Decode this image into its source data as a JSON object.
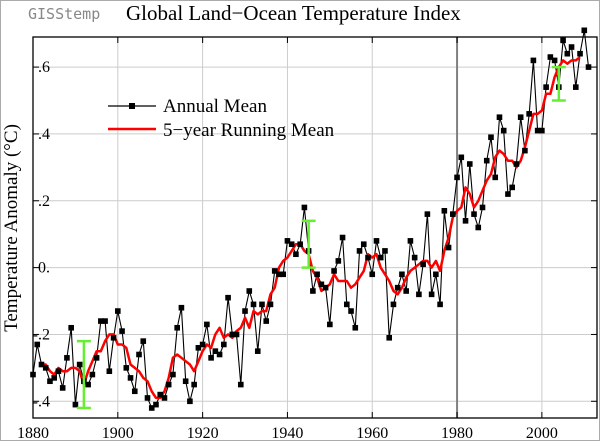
{
  "header": {
    "brand": "GISStemp",
    "title": "Global Land−Ocean Temperature Index"
  },
  "chart_data": {
    "type": "line",
    "ylabel": "Temperature Anomaly (°C)",
    "xlabel": "",
    "xlim": [
      1880,
      2013
    ],
    "ylim": [
      -0.45,
      0.69
    ],
    "x_ticks": [
      {
        "value": 1880,
        "label": "1880"
      },
      {
        "value": 1900,
        "label": "1900"
      },
      {
        "value": 1920,
        "label": "1920"
      },
      {
        "value": 1940,
        "label": "1940"
      },
      {
        "value": 1960,
        "label": "1960"
      },
      {
        "value": 1980,
        "label": "1980"
      },
      {
        "value": 2000,
        "label": "2000"
      }
    ],
    "y_ticks": [
      {
        "value": -0.4,
        "label": "-.4"
      },
      {
        "value": -0.2,
        "label": "-.2"
      },
      {
        "value": 0.0,
        "label": "0."
      },
      {
        "value": 0.2,
        "label": ".2"
      },
      {
        "value": 0.4,
        "label": ".4"
      },
      {
        "value": 0.6,
        "label": ".6"
      }
    ],
    "grid": true,
    "reference_line_x": 1980,
    "legend": {
      "position": "top-left",
      "entries": [
        "Annual Mean",
        "5−year Running Mean"
      ]
    },
    "series": [
      {
        "name": "Annual Mean",
        "color": "#000000",
        "marker": "square",
        "x": [
          1880,
          1881,
          1882,
          1883,
          1884,
          1885,
          1886,
          1887,
          1888,
          1889,
          1890,
          1891,
          1892,
          1893,
          1894,
          1895,
          1896,
          1897,
          1898,
          1899,
          1900,
          1901,
          1902,
          1903,
          1904,
          1905,
          1906,
          1907,
          1908,
          1909,
          1910,
          1911,
          1912,
          1913,
          1914,
          1915,
          1916,
          1917,
          1918,
          1919,
          1920,
          1921,
          1922,
          1923,
          1924,
          1925,
          1926,
          1927,
          1928,
          1929,
          1930,
          1931,
          1932,
          1933,
          1934,
          1935,
          1936,
          1937,
          1938,
          1939,
          1940,
          1941,
          1942,
          1943,
          1944,
          1945,
          1946,
          1947,
          1948,
          1949,
          1950,
          1951,
          1952,
          1953,
          1954,
          1955,
          1956,
          1957,
          1958,
          1959,
          1960,
          1961,
          1962,
          1963,
          1964,
          1965,
          1966,
          1967,
          1968,
          1969,
          1970,
          1971,
          1972,
          1973,
          1974,
          1975,
          1976,
          1977,
          1978,
          1979,
          1980,
          1981,
          1982,
          1983,
          1984,
          1985,
          1986,
          1987,
          1988,
          1989,
          1990,
          1991,
          1992,
          1993,
          1994,
          1995,
          1996,
          1997,
          1998,
          1999,
          2000,
          2001,
          2002,
          2003,
          2004,
          2005,
          2006,
          2007,
          2008,
          2009,
          2010,
          2011
        ],
        "values": [
          -0.32,
          -0.23,
          -0.29,
          -0.3,
          -0.34,
          -0.33,
          -0.31,
          -0.36,
          -0.27,
          -0.18,
          -0.41,
          -0.29,
          -0.34,
          -0.35,
          -0.32,
          -0.27,
          -0.16,
          -0.16,
          -0.31,
          -0.21,
          -0.13,
          -0.19,
          -0.3,
          -0.33,
          -0.37,
          -0.26,
          -0.22,
          -0.39,
          -0.42,
          -0.41,
          -0.38,
          -0.39,
          -0.35,
          -0.32,
          -0.18,
          -0.12,
          -0.34,
          -0.4,
          -0.35,
          -0.24,
          -0.23,
          -0.17,
          -0.27,
          -0.25,
          -0.26,
          -0.23,
          -0.09,
          -0.2,
          -0.2,
          -0.35,
          -0.13,
          -0.07,
          -0.11,
          -0.25,
          -0.11,
          -0.16,
          -0.11,
          -0.01,
          -0.02,
          -0.02,
          0.08,
          0.07,
          0.04,
          0.07,
          0.18,
          0.05,
          -0.07,
          -0.02,
          -0.05,
          -0.06,
          -0.17,
          -0.01,
          0.02,
          0.09,
          -0.11,
          -0.13,
          -0.18,
          0.05,
          0.07,
          0.03,
          -0.02,
          0.08,
          0.03,
          0.05,
          -0.21,
          -0.11,
          -0.06,
          -0.02,
          -0.07,
          0.08,
          0.03,
          -0.08,
          0.01,
          0.16,
          -0.08,
          -0.02,
          -0.11,
          0.17,
          0.06,
          0.16,
          0.27,
          0.33,
          0.14,
          0.31,
          0.16,
          0.12,
          0.18,
          0.32,
          0.39,
          0.27,
          0.45,
          0.41,
          0.22,
          0.24,
          0.31,
          0.45,
          0.35,
          0.46,
          0.62,
          0.41,
          0.41,
          0.54,
          0.63,
          0.62,
          0.54,
          0.68,
          0.64,
          0.66,
          0.54,
          0.64,
          0.71,
          0.6
        ]
      },
      {
        "name": "5−year Running Mean",
        "color": "#ff0000",
        "x": [
          1882,
          1883,
          1884,
          1885,
          1886,
          1887,
          1888,
          1889,
          1890,
          1891,
          1892,
          1893,
          1894,
          1895,
          1896,
          1897,
          1898,
          1899,
          1900,
          1901,
          1902,
          1903,
          1904,
          1905,
          1906,
          1907,
          1908,
          1909,
          1910,
          1911,
          1912,
          1913,
          1914,
          1915,
          1916,
          1917,
          1918,
          1919,
          1920,
          1921,
          1922,
          1923,
          1924,
          1925,
          1926,
          1927,
          1928,
          1929,
          1930,
          1931,
          1932,
          1933,
          1934,
          1935,
          1936,
          1937,
          1938,
          1939,
          1940,
          1941,
          1942,
          1943,
          1944,
          1945,
          1946,
          1947,
          1948,
          1949,
          1950,
          1951,
          1952,
          1953,
          1954,
          1955,
          1956,
          1957,
          1958,
          1959,
          1960,
          1961,
          1962,
          1963,
          1964,
          1965,
          1966,
          1967,
          1968,
          1969,
          1970,
          1971,
          1972,
          1973,
          1974,
          1975,
          1976,
          1977,
          1978,
          1979,
          1980,
          1981,
          1982,
          1983,
          1984,
          1985,
          1986,
          1987,
          1988,
          1989,
          1990,
          1991,
          1992,
          1993,
          1994,
          1995,
          1996,
          1997,
          1998,
          1999,
          2000,
          2001,
          2002,
          2003,
          2004,
          2005,
          2006,
          2007,
          2008,
          2009
        ],
        "values": [
          -0.29,
          -0.29,
          -0.31,
          -0.32,
          -0.3,
          -0.31,
          -0.31,
          -0.3,
          -0.3,
          -0.31,
          -0.35,
          -0.31,
          -0.28,
          -0.25,
          -0.25,
          -0.22,
          -0.2,
          -0.2,
          -0.23,
          -0.23,
          -0.24,
          -0.29,
          -0.3,
          -0.31,
          -0.33,
          -0.34,
          -0.37,
          -0.39,
          -0.39,
          -0.37,
          -0.33,
          -0.27,
          -0.26,
          -0.27,
          -0.28,
          -0.29,
          -0.31,
          -0.28,
          -0.25,
          -0.23,
          -0.24,
          -0.2,
          -0.18,
          -0.21,
          -0.2,
          -0.21,
          -0.19,
          -0.18,
          -0.15,
          -0.18,
          -0.13,
          -0.14,
          -0.13,
          -0.13,
          -0.08,
          -0.06,
          0.0,
          0.02,
          0.03,
          0.05,
          0.07,
          0.07,
          0.05,
          0.04,
          -0.01,
          -0.03,
          -0.07,
          -0.06,
          -0.05,
          -0.02,
          -0.04,
          -0.04,
          -0.04,
          -0.06,
          -0.05,
          -0.03,
          -0.01,
          0.04,
          0.03,
          0.04,
          0.0,
          -0.02,
          -0.04,
          -0.07,
          -0.08,
          -0.06,
          -0.03,
          -0.01,
          0.0,
          0.01,
          0.02,
          0.02,
          0.0,
          0.02,
          -0.01,
          0.05,
          0.09,
          0.15,
          0.17,
          0.18,
          0.24,
          0.22,
          0.18,
          0.2,
          0.23,
          0.26,
          0.28,
          0.33,
          0.35,
          0.34,
          0.32,
          0.32,
          0.3,
          0.32,
          0.36,
          0.41,
          0.46,
          0.46,
          0.47,
          0.52,
          0.52,
          0.57,
          0.6,
          0.62,
          0.61,
          0.62,
          0.62,
          0.63
        ]
      }
    ],
    "error_bars": [
      {
        "x": 1892,
        "y_low": -0.42,
        "y_high": -0.22
      },
      {
        "x": 1945,
        "y_low": 0.0,
        "y_high": 0.14
      },
      {
        "x": 2004,
        "y_low": 0.5,
        "y_high": 0.6
      }
    ]
  },
  "colors": {
    "annual": "#000000",
    "running_mean": "#ff0000",
    "error_bar": "#66ee33",
    "grid": "#cccccc",
    "reference_line": "#808080",
    "brand": "#888888"
  }
}
